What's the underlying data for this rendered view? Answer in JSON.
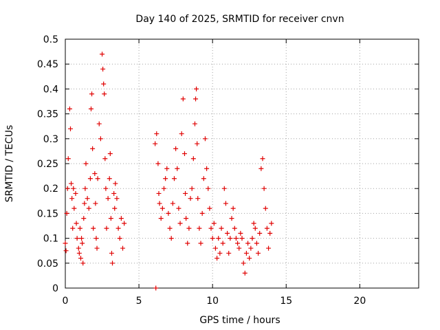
{
  "chart_data": {
    "type": "scatter",
    "title": "Day 140 of 2025, SRMTID for receiver cnvn",
    "xlabel": "GPS time / hours",
    "ylabel": "SRMTID / TECUs",
    "xlim": [
      0,
      24
    ],
    "ylim": [
      0,
      0.5
    ],
    "xticks": [
      0,
      5,
      10,
      15,
      20
    ],
    "xtick_labels": [
      "0",
      "5",
      "10",
      "15",
      "20"
    ],
    "yticks": [
      0,
      0.05,
      0.1,
      0.15,
      0.2,
      0.25,
      0.3,
      0.35,
      0.4,
      0.45,
      0.5
    ],
    "ytick_labels": [
      "0",
      "0.05",
      "0.1",
      "0.15",
      "0.2",
      "0.25",
      "0.3",
      "0.35",
      "0.4",
      "0.45",
      "0.5"
    ],
    "grid": true,
    "legend": "none",
    "marker": "plus",
    "color": "#e00000",
    "series": [
      {
        "name": "SRMTID",
        "x": [
          0.0,
          0.05,
          0.1,
          0.15,
          0.2,
          0.3,
          0.35,
          0.4,
          0.45,
          0.5,
          0.55,
          0.6,
          0.7,
          0.75,
          0.8,
          0.9,
          0.95,
          1.0,
          1.05,
          1.1,
          1.15,
          1.2,
          1.25,
          1.3,
          1.35,
          1.4,
          1.5,
          1.6,
          1.7,
          1.75,
          1.8,
          1.85,
          1.9,
          2.0,
          2.05,
          2.1,
          2.15,
          2.2,
          2.3,
          2.4,
          2.5,
          2.55,
          2.6,
          2.65,
          2.7,
          2.75,
          2.8,
          2.9,
          3.0,
          3.05,
          3.1,
          3.15,
          3.2,
          3.3,
          3.35,
          3.4,
          3.5,
          3.6,
          3.7,
          3.8,
          3.9,
          4.0,
          6.1,
          6.2,
          6.3,
          6.35,
          6.4,
          6.5,
          6.6,
          6.7,
          6.8,
          6.9,
          7.0,
          7.1,
          7.2,
          7.3,
          7.4,
          7.5,
          7.6,
          7.7,
          7.8,
          7.9,
          8.0,
          8.1,
          8.15,
          8.2,
          8.3,
          8.4,
          8.5,
          8.6,
          8.7,
          8.8,
          8.85,
          8.9,
          8.95,
          9.0,
          9.1,
          9.2,
          9.3,
          9.4,
          9.5,
          9.6,
          9.7,
          9.8,
          9.9,
          10.0,
          10.1,
          10.2,
          10.3,
          10.4,
          10.5,
          10.6,
          10.7,
          10.8,
          10.9,
          11.0,
          11.1,
          11.2,
          11.3,
          11.4,
          11.5,
          11.6,
          11.7,
          11.8,
          11.9,
          12.0,
          12.1,
          12.2,
          12.3,
          12.4,
          12.5,
          12.6,
          12.7,
          12.8,
          12.9,
          13.0,
          13.1,
          13.2,
          13.3,
          13.4,
          13.5,
          13.6,
          13.7,
          13.8,
          13.9,
          14.0,
          6.15
        ],
        "y": [
          0.09,
          0.075,
          0.15,
          0.2,
          0.26,
          0.36,
          0.32,
          0.21,
          0.18,
          0.12,
          0.2,
          0.16,
          0.19,
          0.13,
          0.1,
          0.08,
          0.07,
          0.12,
          0.06,
          0.1,
          0.09,
          0.05,
          0.14,
          0.17,
          0.2,
          0.25,
          0.18,
          0.16,
          0.22,
          0.36,
          0.39,
          0.28,
          0.12,
          0.23,
          0.17,
          0.1,
          0.08,
          0.22,
          0.33,
          0.3,
          0.47,
          0.44,
          0.41,
          0.39,
          0.26,
          0.2,
          0.12,
          0.18,
          0.22,
          0.27,
          0.14,
          0.07,
          0.05,
          0.19,
          0.16,
          0.21,
          0.18,
          0.12,
          0.1,
          0.14,
          0.08,
          0.13,
          0.29,
          0.31,
          0.25,
          0.19,
          0.17,
          0.14,
          0.16,
          0.2,
          0.22,
          0.24,
          0.15,
          0.12,
          0.1,
          0.17,
          0.22,
          0.28,
          0.24,
          0.16,
          0.13,
          0.31,
          0.38,
          0.27,
          0.19,
          0.14,
          0.09,
          0.12,
          0.18,
          0.2,
          0.26,
          0.33,
          0.38,
          0.4,
          0.29,
          0.18,
          0.12,
          0.09,
          0.15,
          0.22,
          0.3,
          0.24,
          0.2,
          0.16,
          0.12,
          0.1,
          0.13,
          0.08,
          0.06,
          0.1,
          0.07,
          0.12,
          0.09,
          0.2,
          0.17,
          0.11,
          0.07,
          0.1,
          0.14,
          0.16,
          0.12,
          0.1,
          0.09,
          0.08,
          0.11,
          0.1,
          0.05,
          0.03,
          0.07,
          0.09,
          0.06,
          0.08,
          0.1,
          0.13,
          0.12,
          0.09,
          0.07,
          0.11,
          0.24,
          0.26,
          0.2,
          0.16,
          0.12,
          0.08,
          0.11,
          0.13,
          0.0
        ]
      }
    ]
  }
}
